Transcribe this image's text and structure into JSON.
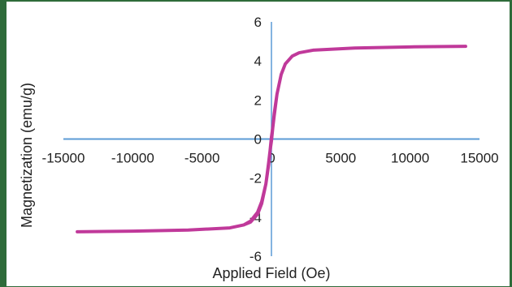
{
  "chart_data": {
    "type": "line",
    "title": "",
    "xlabel": "Applied Field (Oe)",
    "ylabel": "Magnetization (emu/g)",
    "xlim": [
      -15000,
      15000
    ],
    "ylim": [
      -6,
      6
    ],
    "xticks": [
      -15000,
      -10000,
      -5000,
      0,
      5000,
      10000,
      15000
    ],
    "yticks": [
      -6,
      -4,
      -2,
      0,
      2,
      4,
      6
    ],
    "grid": false,
    "legend": "none",
    "series": [
      {
        "color": "#c0399a",
        "x": [
          -14000,
          -10000,
          -6000,
          -3000,
          -2000,
          -1500,
          -1000,
          -700,
          -400,
          -200,
          0,
          100,
          200,
          400,
          700,
          1000,
          1500,
          2000,
          3000,
          6000,
          10000,
          14000,
          10000,
          6000,
          3000,
          2000,
          1500,
          1000,
          700,
          400,
          200,
          0,
          -100,
          -200,
          -400,
          -700,
          -1000,
          -1500,
          -2000,
          -3000,
          -6000,
          -10000,
          -14000
        ],
        "y": [
          -4.75,
          -4.72,
          -4.66,
          -4.55,
          -4.4,
          -4.2,
          -3.75,
          -3.2,
          -2.3,
          -1.3,
          0.1,
          0.6,
          1.2,
          2.3,
          3.3,
          3.85,
          4.25,
          4.42,
          4.55,
          4.66,
          4.72,
          4.75,
          4.72,
          4.66,
          4.55,
          4.42,
          4.25,
          3.85,
          3.3,
          2.3,
          1.3,
          -0.1,
          -0.6,
          -1.2,
          -2.3,
          -3.3,
          -3.85,
          -4.25,
          -4.4,
          -4.55,
          -4.66,
          -4.72,
          -4.75
        ]
      }
    ],
    "axis_color": "#5b9bd5"
  }
}
